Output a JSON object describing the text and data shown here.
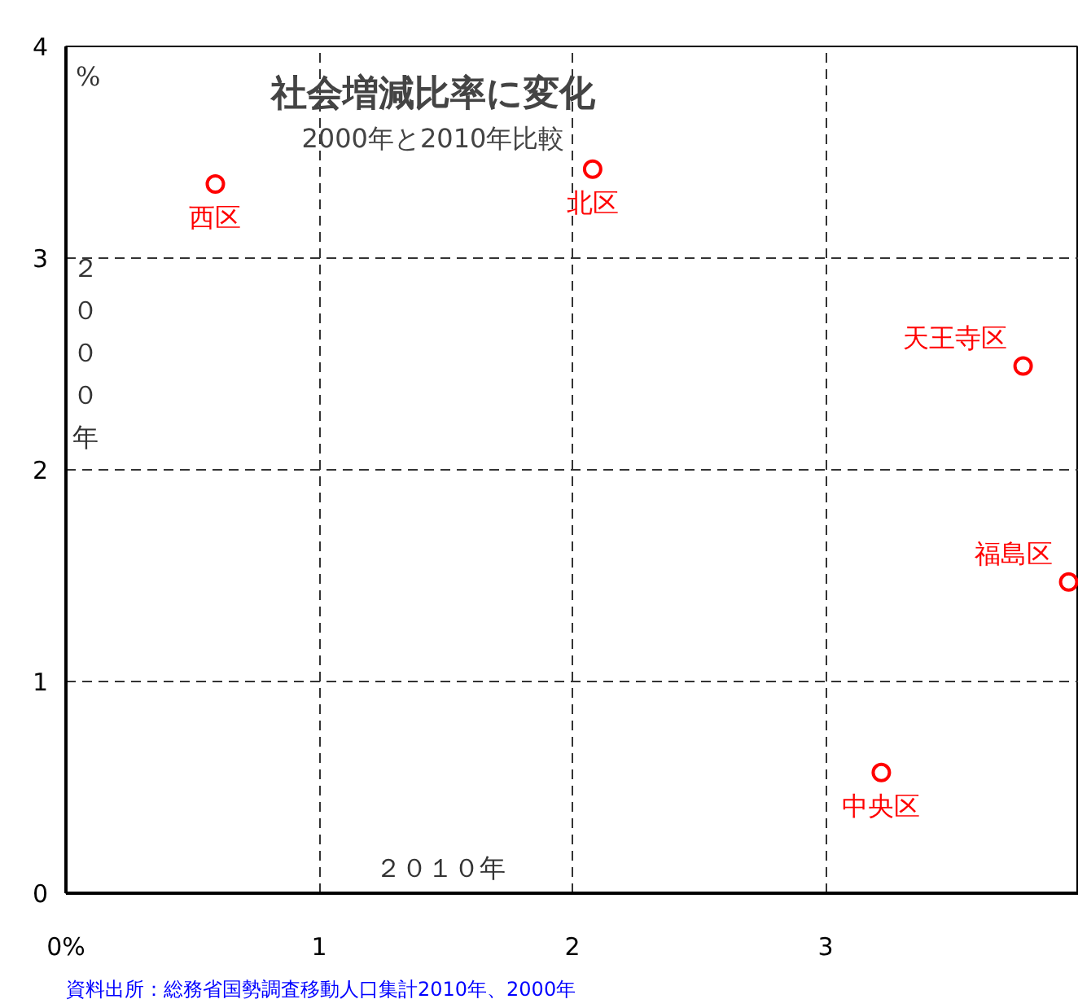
{
  "chart_data": {
    "type": "scatter",
    "title": "社会増減比率に変化",
    "subtitle": "2000年と2010年比較",
    "xlabel": "２０１０年",
    "ylabel": "２０００年",
    "series": [
      {
        "color": "#ff0000",
        "x": [
          0.59,
          2.08,
          3.78,
          3.96,
          3.22
        ],
        "values": [
          3.35,
          3.42,
          2.49,
          1.47,
          0.57
        ]
      }
    ],
    "annotations": [
      {
        "text": "西区",
        "x": 0.59,
        "y": 3.35
      },
      {
        "text": "北区",
        "x": 2.08,
        "y": 3.42
      },
      {
        "text": "天王寺区",
        "x": 3.78,
        "y": 2.49
      },
      {
        "text": "福島区",
        "x": 3.96,
        "y": 1.47
      },
      {
        "text": "中央区",
        "x": 3.22,
        "y": 0.57
      },
      "%",
      "資料出所：総務省国勢調査移動人口集計2010年、2000年"
    ],
    "xlim": [
      0,
      4
    ],
    "ylim": [
      0,
      4
    ],
    "xticks": [
      {
        "value": 0,
        "label": "0%"
      },
      1,
      2,
      3
    ],
    "yticks": [
      0,
      1,
      2,
      3,
      4
    ],
    "grid": true,
    "marker": "circle"
  }
}
